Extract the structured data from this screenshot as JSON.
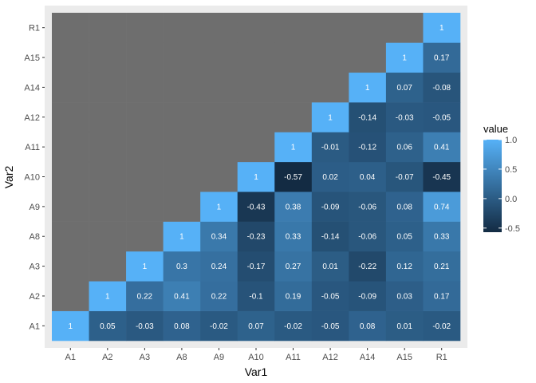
{
  "chart_data": {
    "type": "heatmap",
    "xlabel": "Var1",
    "ylabel": "Var2",
    "categories_x": [
      "A1",
      "A2",
      "A3",
      "A8",
      "A9",
      "A10",
      "A11",
      "A12",
      "A14",
      "A15",
      "R1"
    ],
    "categories_y": [
      "A1",
      "A2",
      "A3",
      "A8",
      "A9",
      "A10",
      "A11",
      "A12",
      "A14",
      "A15",
      "R1"
    ],
    "values": [
      [
        1,
        0.05,
        -0.03,
        0.08,
        -0.02,
        0.07,
        -0.02,
        -0.05,
        0.08,
        0.01,
        -0.02
      ],
      [
        null,
        1,
        0.22,
        0.41,
        0.22,
        -0.1,
        0.19,
        -0.05,
        -0.09,
        0.03,
        0.17
      ],
      [
        null,
        null,
        1,
        0.3,
        0.24,
        -0.17,
        0.27,
        0.01,
        -0.22,
        0.12,
        0.21
      ],
      [
        null,
        null,
        null,
        1,
        0.34,
        -0.23,
        0.33,
        -0.14,
        -0.06,
        0.05,
        0.33
      ],
      [
        null,
        null,
        null,
        null,
        1,
        -0.43,
        0.38,
        -0.09,
        -0.06,
        0.08,
        0.74
      ],
      [
        null,
        null,
        null,
        null,
        null,
        1,
        -0.57,
        0.02,
        0.04,
        -0.07,
        -0.45
      ],
      [
        null,
        null,
        null,
        null,
        null,
        null,
        1,
        -0.01,
        -0.12,
        0.06,
        0.41
      ],
      [
        null,
        null,
        null,
        null,
        null,
        null,
        null,
        1,
        -0.14,
        -0.03,
        -0.05
      ],
      [
        null,
        null,
        null,
        null,
        null,
        null,
        null,
        null,
        1,
        0.07,
        -0.08
      ],
      [
        null,
        null,
        null,
        null,
        null,
        null,
        null,
        null,
        null,
        1,
        0.17
      ],
      [
        null,
        null,
        null,
        null,
        null,
        null,
        null,
        null,
        null,
        null,
        1
      ]
    ],
    "legend": {
      "title": "value",
      "ticks": [
        "1.0",
        "0.5",
        "0.0",
        "-0.5"
      ],
      "tick_values": [
        1.0,
        0.5,
        0.0,
        -0.5
      ],
      "range": [
        -0.57,
        1
      ],
      "low_color": "#132B43",
      "high_color": "#56B1F7",
      "placement": "right"
    },
    "na_color": "#6e6e6e",
    "panel_background": "#ebebeb"
  }
}
